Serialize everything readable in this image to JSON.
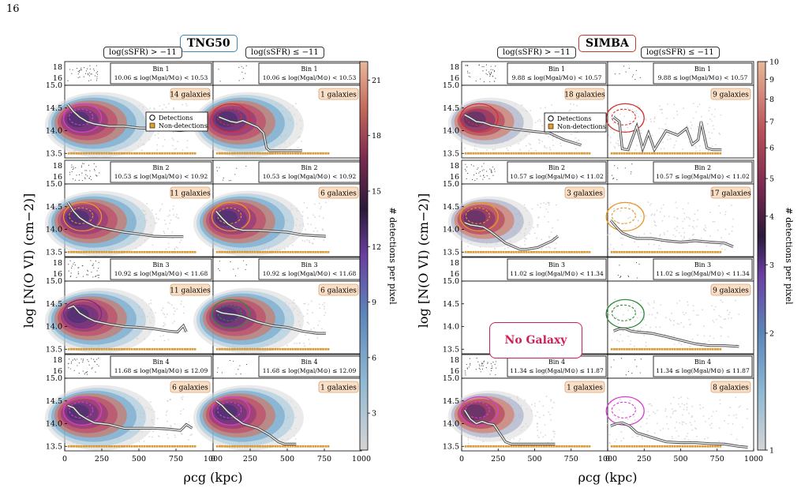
{
  "page_number": "16",
  "sims": [
    {
      "name": "TNG50",
      "color": "#3a86b8",
      "bins": [
        {
          "bin": "Bin 1",
          "mass": "10.06 ≤ log(Mgal/M⊙) < 10.53",
          "galaxies": [
            "14 galaxies",
            "1 galaxies"
          ]
        },
        {
          "bin": "Bin 2",
          "mass": "10.53 ≤ log(Mgal/M⊙) < 10.92",
          "galaxies": [
            "11 galaxies",
            "6 galaxies"
          ]
        },
        {
          "bin": "Bin 3",
          "mass": "10.92 ≤ log(Mgal/M⊙) < 11.68",
          "galaxies": [
            "11 galaxies",
            "6 galaxies"
          ]
        },
        {
          "bin": "Bin 4",
          "mass": "11.68 ≤ log(Mgal/M⊙) ≤ 12.09",
          "galaxies": [
            "6 galaxies",
            "1 galaxies"
          ]
        }
      ]
    },
    {
      "name": "SIMBA",
      "color": "#c0392b",
      "bins": [
        {
          "bin": "Bin 1",
          "mass": "9.88 ≤ log(Mgal/M⊙) < 10.57",
          "galaxies": [
            "18 galaxies",
            "9 galaxies"
          ]
        },
        {
          "bin": "Bin 2",
          "mass": "10.57 ≤ log(Mgal/M⊙) < 11.02",
          "galaxies": [
            "3 galaxies",
            "17 galaxies"
          ]
        },
        {
          "bin": "Bin 3",
          "mass": "11.02 ≤ log(Mgal/M⊙) < 11.34",
          "galaxies": [
            "",
            "9 galaxies"
          ]
        },
        {
          "bin": "Bin 4",
          "mass": "11.34 ≤ log(Mgal/M⊙) ≤ 11.87",
          "galaxies": [
            "1 galaxies",
            "8 galaxies"
          ]
        }
      ]
    }
  ],
  "sfr_labels": [
    "log(sSFR) > −11",
    "log(sSFR) ≤ −11"
  ],
  "no_galaxy": "No Galaxy",
  "legend": {
    "detections": "Detections",
    "non_detections": "Non-detections"
  },
  "colors": {
    "nondet": "#e8a020",
    "contour_orange": "#e8962a",
    "contour_green": "#2e8b3a",
    "contour_magenta": "#d63fd1",
    "contour_red": "#d43030",
    "contour_purple": "#7a2a8a",
    "median": "#555555"
  },
  "chart_data": [
    {
      "type": "heatmap",
      "title": "TNG50",
      "xlabel": "ρcg (kpc)",
      "ylabel": "log [N(O VI) (cm−2)]",
      "xlim": [
        0,
        1000
      ],
      "ylim": [
        13.4,
        15.0
      ],
      "x_ticks": [
        "0",
        "250",
        "500",
        "750",
        "1000"
      ],
      "y_ticks": [
        "13.5",
        "14.0",
        "14.5",
        "15.0"
      ],
      "upper_y_ticks": [
        "16",
        "18"
      ],
      "colorbar": {
        "label": "# detections per pixel",
        "range": [
          1,
          22
        ],
        "ticks": [
          "3",
          "6",
          "9",
          "12",
          "15",
          "18",
          "21"
        ],
        "scale": "linear"
      },
      "median_profiles": {
        "bin1": {
          "left": [
            [
              20,
              14.58
            ],
            [
              60,
              14.42
            ],
            [
              100,
              14.3
            ],
            [
              150,
              14.2
            ],
            [
              200,
              14.15
            ],
            [
              300,
              14.1
            ],
            [
              400,
              14.1
            ],
            [
              500,
              14.06
            ],
            [
              600,
              14.05
            ],
            [
              700,
              14.02
            ],
            [
              780,
              14.0
            ],
            [
              830,
              14.02
            ]
          ],
          "right": [
            [
              40,
              14.3
            ],
            [
              80,
              14.25
            ],
            [
              120,
              14.2
            ],
            [
              160,
              14.18
            ],
            [
              200,
              14.22
            ],
            [
              250,
              14.15
            ],
            [
              300,
              14.08
            ],
            [
              340,
              13.95
            ],
            [
              360,
              13.62
            ],
            [
              380,
              13.56
            ],
            [
              420,
              13.56
            ],
            [
              480,
              13.56
            ],
            [
              520,
              13.56
            ],
            [
              600,
              13.56
            ]
          ]
        },
        "bin2": {
          "left": [
            [
              20,
              14.6
            ],
            [
              60,
              14.4
            ],
            [
              100,
              14.26
            ],
            [
              150,
              14.15
            ],
            [
              200,
              14.07
            ],
            [
              300,
              14.0
            ],
            [
              400,
              13.94
            ],
            [
              500,
              13.9
            ],
            [
              600,
              13.85
            ],
            [
              700,
              13.84
            ],
            [
              800,
              13.84
            ]
          ],
          "right": [
            [
              20,
              14.4
            ],
            [
              60,
              14.25
            ],
            [
              100,
              14.12
            ],
            [
              150,
              14.02
            ],
            [
              200,
              13.98
            ],
            [
              300,
              13.98
            ],
            [
              400,
              13.96
            ],
            [
              500,
              13.94
            ],
            [
              600,
              13.88
            ],
            [
              700,
              13.86
            ],
            [
              760,
              13.85
            ]
          ]
        },
        "bin3": {
          "left": [
            [
              20,
              14.4
            ],
            [
              60,
              14.45
            ],
            [
              100,
              14.3
            ],
            [
              150,
              14.2
            ],
            [
              200,
              14.12
            ],
            [
              300,
              14.05
            ],
            [
              400,
              14.0
            ],
            [
              500,
              13.98
            ],
            [
              600,
              13.95
            ],
            [
              700,
              13.9
            ],
            [
              760,
              13.88
            ],
            [
              800,
              14.02
            ],
            [
              820,
              13.88
            ]
          ],
          "right": [
            [
              20,
              14.35
            ],
            [
              60,
              14.3
            ],
            [
              100,
              14.28
            ],
            [
              150,
              14.26
            ],
            [
              200,
              14.22
            ],
            [
              300,
              14.1
            ],
            [
              400,
              14.02
            ],
            [
              500,
              13.98
            ],
            [
              600,
              13.9
            ],
            [
              700,
              13.85
            ],
            [
              760,
              13.85
            ]
          ]
        },
        "bin4": {
          "left": [
            [
              20,
              14.4
            ],
            [
              60,
              14.35
            ],
            [
              100,
              14.2
            ],
            [
              150,
              14.1
            ],
            [
              200,
              14.02
            ],
            [
              300,
              13.98
            ],
            [
              400,
              13.9
            ],
            [
              500,
              13.9
            ],
            [
              600,
              13.9
            ],
            [
              700,
              13.88
            ],
            [
              780,
              13.85
            ],
            [
              820,
              13.98
            ],
            [
              860,
              13.9
            ]
          ],
          "right": [
            [
              20,
              14.5
            ],
            [
              60,
              14.4
            ],
            [
              100,
              14.26
            ],
            [
              150,
              14.12
            ],
            [
              200,
              14.0
            ],
            [
              300,
              13.9
            ],
            [
              380,
              13.75
            ],
            [
              440,
              13.6
            ],
            [
              480,
              13.55
            ],
            [
              560,
              13.55
            ]
          ]
        }
      }
    },
    {
      "type": "heatmap",
      "title": "SIMBA",
      "xlabel": "ρcg (kpc)",
      "ylabel": "log [N(O VI) (cm−2)]",
      "xlim": [
        0,
        1000
      ],
      "ylim": [
        13.4,
        15.0
      ],
      "x_ticks": [
        "0",
        "250",
        "500",
        "750",
        "1000"
      ],
      "y_ticks": [
        "13.5",
        "14.0",
        "14.5",
        "15.0"
      ],
      "upper_y_ticks": [
        "16",
        "18"
      ],
      "colorbar": {
        "label": "# detections per pixel",
        "range": [
          1,
          10
        ],
        "ticks": [
          "1",
          "2",
          "3",
          "4",
          "5",
          "6",
          "7",
          "8",
          "9",
          "10"
        ],
        "scale": "log"
      },
      "median_profiles": {
        "bin1": {
          "left": [
            [
              20,
              14.35
            ],
            [
              60,
              14.28
            ],
            [
              100,
              14.2
            ],
            [
              150,
              14.18
            ],
            [
              200,
              14.12
            ],
            [
              300,
              14.06
            ],
            [
              400,
              14.02
            ],
            [
              500,
              13.98
            ],
            [
              600,
              13.95
            ],
            [
              700,
              13.8
            ],
            [
              780,
              13.72
            ],
            [
              820,
              13.68
            ]
          ],
          "right": [
            [
              40,
              14.3
            ],
            [
              80,
              14.2
            ],
            [
              100,
              13.6
            ],
            [
              140,
              13.58
            ],
            [
              200,
              14.1
            ],
            [
              240,
              13.6
            ],
            [
              280,
              13.95
            ],
            [
              320,
              13.58
            ],
            [
              400,
              14.0
            ],
            [
              480,
              13.9
            ],
            [
              540,
              14.05
            ],
            [
              580,
              13.7
            ],
            [
              620,
              13.8
            ],
            [
              640,
              14.2
            ],
            [
              680,
              13.62
            ],
            [
              720,
              13.58
            ],
            [
              780,
              13.58
            ]
          ]
        },
        "bin2": {
          "left": [
            [
              20,
              14.15
            ],
            [
              60,
              14.1
            ],
            [
              100,
              14.08
            ],
            [
              150,
              14.05
            ],
            [
              200,
              13.95
            ],
            [
              300,
              13.7
            ],
            [
              400,
              13.56
            ],
            [
              440,
              13.56
            ],
            [
              520,
              13.6
            ],
            [
              620,
              13.75
            ],
            [
              660,
              13.85
            ]
          ],
          "right": [
            [
              20,
              14.2
            ],
            [
              60,
              14.05
            ],
            [
              100,
              13.92
            ],
            [
              150,
              13.85
            ],
            [
              200,
              13.8
            ],
            [
              300,
              13.8
            ],
            [
              400,
              13.75
            ],
            [
              500,
              13.72
            ],
            [
              600,
              13.75
            ],
            [
              700,
              13.72
            ],
            [
              800,
              13.7
            ],
            [
              860,
              13.62
            ]
          ]
        },
        "bin3": {
          "left": [],
          "right": [
            [
              40,
              13.9
            ],
            [
              80,
              13.95
            ],
            [
              120,
              13.95
            ],
            [
              160,
              13.9
            ],
            [
              200,
              13.88
            ],
            [
              300,
              13.85
            ],
            [
              400,
              13.78
            ],
            [
              500,
              13.7
            ],
            [
              600,
              13.62
            ],
            [
              700,
              13.58
            ],
            [
              800,
              13.58
            ],
            [
              900,
              13.56
            ]
          ]
        },
        "bin4": {
          "left": [
            [
              20,
              14.3
            ],
            [
              60,
              14.1
            ],
            [
              100,
              14.0
            ],
            [
              140,
              14.05
            ],
            [
              180,
              14.0
            ],
            [
              220,
              13.98
            ],
            [
              300,
              13.6
            ],
            [
              340,
              13.55
            ],
            [
              400,
              13.55
            ],
            [
              500,
              13.55
            ],
            [
              600,
              13.55
            ],
            [
              640,
              13.55
            ]
          ],
          "right": [
            [
              20,
              13.95
            ],
            [
              60,
              14.0
            ],
            [
              100,
              14.02
            ],
            [
              150,
              13.95
            ],
            [
              200,
              13.8
            ],
            [
              300,
              13.7
            ],
            [
              400,
              13.6
            ],
            [
              500,
              13.58
            ],
            [
              600,
              13.58
            ],
            [
              700,
              13.56
            ],
            [
              800,
              13.55
            ],
            [
              900,
              13.5
            ],
            [
              960,
              13.48
            ]
          ]
        }
      }
    }
  ]
}
